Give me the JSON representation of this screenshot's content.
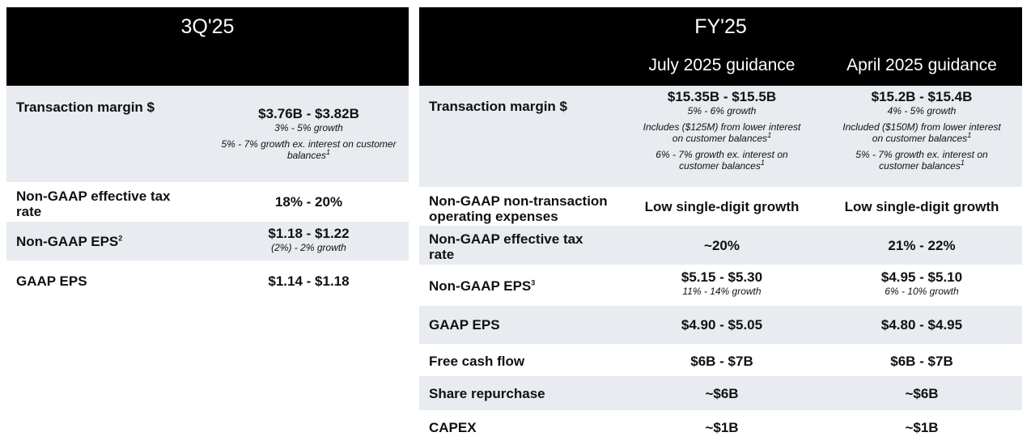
{
  "left": {
    "period": "3Q'25",
    "rows": [
      {
        "label": "Transaction margin $",
        "value": "$3.76B - $3.82B",
        "notes": [
          "3% - 5% growth",
          "5% - 7% growth ex. interest on customer balances"
        ],
        "footnote": "1"
      },
      {
        "label": "Non-GAAP effective tax rate",
        "value": "18% - 20%"
      },
      {
        "label": "Non-GAAP EPS",
        "label_footnote": "2",
        "value": "$1.18 - $1.22",
        "notes": [
          "(2%) - 2% growth"
        ]
      },
      {
        "label": "GAAP EPS",
        "value": "$1.14 - $1.18"
      }
    ]
  },
  "right": {
    "period": "FY'25",
    "columns": [
      "July 2025 guidance",
      "April 2025 guidance"
    ],
    "rows": [
      {
        "label": "Transaction margin $",
        "july": {
          "value": "$15.35B - $15.5B",
          "growth": "5% - 6% growth",
          "note1": "Includes ($125M) from lower interest on customer balances",
          "note2": "6% - 7% growth ex. interest on customer balances"
        },
        "april": {
          "value": "$15.2B - $15.4B",
          "growth": "4% - 5% growth",
          "note1": "Included ($150M) from lower interest on customer balances",
          "note2": "5% - 7% growth ex. interest on customer balances"
        },
        "footnote": "1"
      },
      {
        "label": "Non-GAAP non-transaction operating expenses",
        "july": "Low single-digit growth",
        "april": "Low single-digit growth"
      },
      {
        "label": "Non-GAAP effective tax rate",
        "july": "~20%",
        "april": "21% - 22%"
      },
      {
        "label": "Non-GAAP EPS",
        "label_footnote": "3",
        "july": {
          "value": "$5.15 - $5.30",
          "growth": "11% - 14% growth"
        },
        "april": {
          "value": "$4.95 - $5.10",
          "growth": "6% - 10% growth"
        }
      },
      {
        "label": "GAAP EPS",
        "july": "$4.90 - $5.05",
        "april": "$4.80 - $4.95"
      },
      {
        "label": "Free cash flow",
        "july": "$6B - $7B",
        "april": "$6B - $7B"
      },
      {
        "label": "Share repurchase",
        "july": "~$6B",
        "april": "~$6B"
      },
      {
        "label": "CAPEX",
        "july": "~$1B",
        "april": "~$1B"
      }
    ]
  },
  "colors": {
    "header_bg": "#000000",
    "header_text": "#ffffff",
    "row_shade": "#e8ebef",
    "text": "#111111"
  }
}
